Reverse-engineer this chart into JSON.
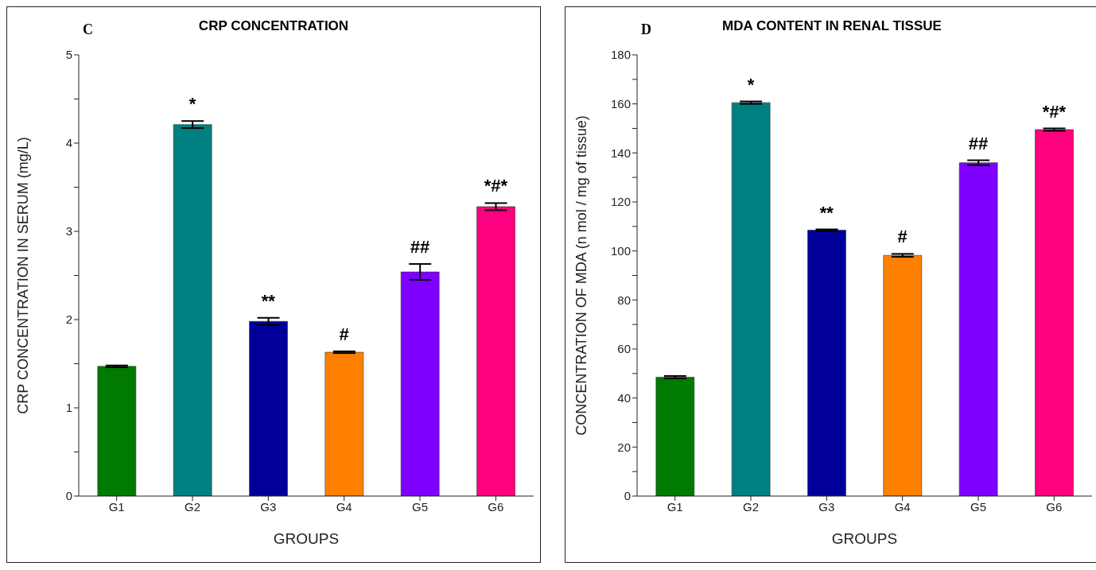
{
  "chart_data": [
    {
      "type": "bar",
      "title": "CRP CONCENTRATION",
      "xlabel": "GROUPS",
      "ylabel": "CRP CONCENTRATION IN SERUM (mg/L)",
      "categories": [
        "G1",
        "G2",
        "G3",
        "G4",
        "G5",
        "G6"
      ],
      "values": [
        1.47,
        4.21,
        1.98,
        1.63,
        2.54,
        3.28
      ],
      "errors": [
        0.01,
        0.04,
        0.04,
        0.01,
        0.09,
        0.04
      ],
      "colors": [
        "#007a00",
        "#008080",
        "#000099",
        "#ff8000",
        "#8000ff",
        "#ff0080"
      ],
      "ylim": [
        0,
        5
      ],
      "yticks": [
        0,
        {
          "value": 0.5,
          "label": null
        },
        1,
        {
          "value": 1.5,
          "label": null
        },
        2,
        {
          "value": 2.5,
          "label": null
        },
        3,
        {
          "value": 3.5,
          "label": null
        },
        4,
        {
          "value": 4.5,
          "label": null
        },
        5
      ],
      "annotations": [
        "C",
        {
          "text": "*",
          "x": "G2",
          "y": 4.25
        },
        {
          "text": "**",
          "x": "G3",
          "y": 2.02
        },
        {
          "text": "#",
          "x": "G4",
          "y": 1.64
        },
        {
          "text": "##",
          "x": "G5",
          "y": 2.63
        },
        {
          "text": "*#*",
          "x": "G6",
          "y": 3.32
        }
      ]
    },
    {
      "type": "bar",
      "title": "MDA CONTENT IN RENAL TISSUE",
      "xlabel": "GROUPS",
      "ylabel": "CONCENTRATION OF MDA (n mol / mg of tissue)",
      "categories": [
        "G1",
        "G2",
        "G3",
        "G4",
        "G5",
        "G6"
      ],
      "values": [
        48.5,
        160.5,
        108.5,
        98.2,
        136,
        149.5
      ],
      "errors": [
        0.5,
        0.5,
        0.3,
        0.6,
        1,
        0.5
      ],
      "colors": [
        "#007a00",
        "#008080",
        "#000099",
        "#ff8000",
        "#8000ff",
        "#ff0080"
      ],
      "ylim": [
        0,
        180
      ],
      "yticks": [
        0,
        {
          "value": 10,
          "label": null
        },
        20,
        {
          "value": 30,
          "label": null
        },
        40,
        {
          "value": 50,
          "label": null
        },
        60,
        {
          "value": 70,
          "label": null
        },
        80,
        {
          "value": 90,
          "label": null
        },
        100,
        {
          "value": 110,
          "label": null
        },
        120,
        {
          "value": 130,
          "label": null
        },
        140,
        {
          "value": 150,
          "label": null
        },
        160,
        {
          "value": 170,
          "label": null
        },
        180
      ],
      "annotations": [
        "D",
        {
          "text": "*",
          "x": "G2",
          "y": 161
        },
        {
          "text": "**",
          "x": "G3",
          "y": 108.8
        },
        {
          "text": "#",
          "x": "G4",
          "y": 98.8
        },
        {
          "text": "##",
          "x": "G5",
          "y": 137
        },
        {
          "text": "*#*",
          "x": "G6",
          "y": 150
        }
      ]
    }
  ]
}
